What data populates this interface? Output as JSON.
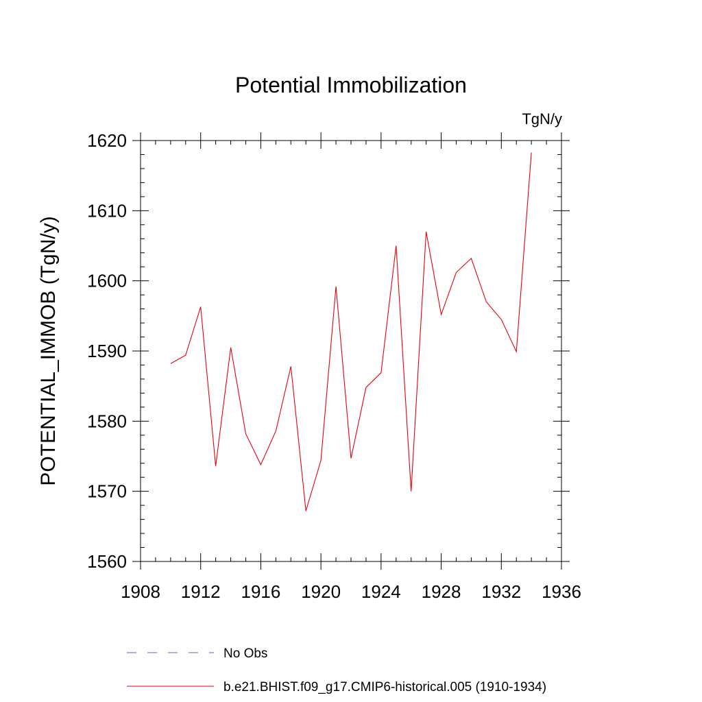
{
  "chart_data": {
    "type": "line",
    "title": "Potential Immobilization",
    "units_label": "TgN/y",
    "ylabel": "POTENTIAL_IMMOB  (TgN/y)",
    "xlabel": "",
    "xlim": [
      1908,
      1936
    ],
    "ylim": [
      1560,
      1620
    ],
    "x_ticks": [
      1908,
      1912,
      1916,
      1920,
      1924,
      1928,
      1932,
      1936
    ],
    "y_ticks": [
      1560,
      1570,
      1580,
      1590,
      1600,
      1610,
      1620
    ],
    "grid": false,
    "legend_position": "bottom",
    "series": [
      {
        "name": "b.e21.BHIST.f09_g17.CMIP6-historical.005 (1910-1934)",
        "color": "#e8000b",
        "style": "solid",
        "x": [
          1910,
          1911,
          1912,
          1913,
          1914,
          1915,
          1916,
          1917,
          1918,
          1919,
          1920,
          1921,
          1922,
          1923,
          1924,
          1925,
          1926,
          1927,
          1928,
          1929,
          1930,
          1931,
          1932,
          1933,
          1934
        ],
        "y": [
          1588.2,
          1589.4,
          1596.3,
          1573.6,
          1590.5,
          1578.2,
          1573.8,
          1578.6,
          1587.8,
          1567.2,
          1574.4,
          1599.2,
          1574.7,
          1584.8,
          1586.9,
          1605.0,
          1570.0,
          1607.0,
          1595.2,
          1601.2,
          1603.2,
          1597.0,
          1594.5,
          1589.9,
          1618.3
        ]
      }
    ],
    "legend": [
      {
        "label": "No Obs",
        "color": "#6a5acd",
        "style": "dashed"
      },
      {
        "label": "b.e21.BHIST.f09_g17.CMIP6-historical.005 (1910-1934)",
        "color": "#e8000b",
        "style": "solid"
      }
    ]
  }
}
